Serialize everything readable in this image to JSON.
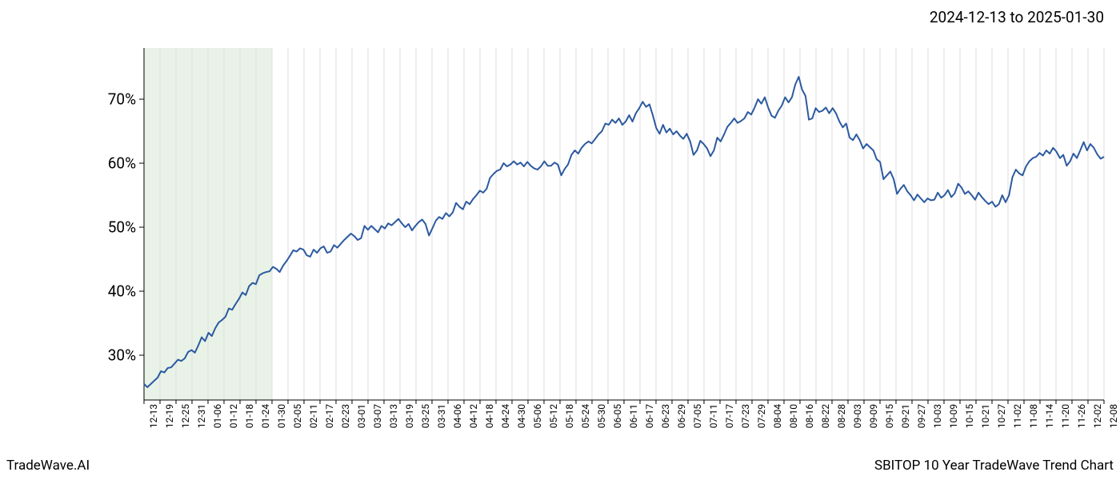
{
  "date_range": "2024-12-13 to 2025-01-30",
  "footer_left": "TradeWave.AI",
  "footer_right": "SBITOP 10 Year TradeWave Trend Chart",
  "chart": {
    "type": "line",
    "line_color": "#2c5aa0",
    "line_width": 2,
    "background_color": "#ffffff",
    "grid_color": "#dcdcdc",
    "highlight_color": "#d5e8d4",
    "highlight_opacity": 0.55,
    "axis_color": "#000000",
    "text_color": "#000000",
    "ylim": [
      23,
      78
    ],
    "y_ticks": [
      30,
      40,
      50,
      60,
      70
    ],
    "y_tick_labels": [
      "30%",
      "40%",
      "50%",
      "60%",
      "70%"
    ],
    "y_label_fontsize": 19,
    "x_label_fontsize": 12,
    "x_labels": [
      "12-13",
      "12-19",
      "12-25",
      "12-31",
      "01-06",
      "01-12",
      "01-18",
      "01-24",
      "01-30",
      "02-05",
      "02-11",
      "02-17",
      "02-23",
      "03-01",
      "03-07",
      "03-13",
      "03-19",
      "03-25",
      "03-31",
      "04-06",
      "04-12",
      "04-18",
      "04-24",
      "04-30",
      "05-06",
      "05-12",
      "05-18",
      "05-24",
      "05-30",
      "06-05",
      "06-11",
      "06-17",
      "06-23",
      "06-29",
      "07-05",
      "07-11",
      "07-17",
      "07-23",
      "07-29",
      "08-04",
      "08-10",
      "08-16",
      "08-22",
      "08-28",
      "09-03",
      "09-09",
      "09-15",
      "09-21",
      "09-27",
      "10-03",
      "10-09",
      "10-15",
      "10-21",
      "10-27",
      "11-02",
      "11-08",
      "11-14",
      "11-20",
      "11-26",
      "12-02",
      "12-08"
    ],
    "highlight_range": {
      "start_idx": 0,
      "end_idx": 8
    },
    "values": [
      25.5,
      25.0,
      25.5,
      26.0,
      26.5,
      27.5,
      27.3,
      28.0,
      28.1,
      28.7,
      29.3,
      29.1,
      29.5,
      30.5,
      30.8,
      30.4,
      31.5,
      32.8,
      32.2,
      33.5,
      33.0,
      34.2,
      35.1,
      35.5,
      36.0,
      37.3,
      37.1,
      38.0,
      38.8,
      39.8,
      39.4,
      40.8,
      41.3,
      41.1,
      42.5,
      42.8,
      43.0,
      43.1,
      43.8,
      43.5,
      43.0,
      44.0,
      44.7,
      45.5,
      46.4,
      46.2,
      46.7,
      46.5,
      45.6,
      45.4,
      46.5,
      46.0,
      46.7,
      47.0,
      46.0,
      46.2,
      47.2,
      46.8,
      47.4,
      48.0,
      48.5,
      49.0,
      48.6,
      48.0,
      48.3,
      50.2,
      49.6,
      50.2,
      49.7,
      49.2,
      50.2,
      49.8,
      50.6,
      50.3,
      50.8,
      51.3,
      50.6,
      50.0,
      50.5,
      49.5,
      50.2,
      50.8,
      51.2,
      50.5,
      48.7,
      49.8,
      51.0,
      51.6,
      51.3,
      52.2,
      51.7,
      52.3,
      53.8,
      53.2,
      52.8,
      54.0,
      53.6,
      54.4,
      55.0,
      55.7,
      55.4,
      56.0,
      57.7,
      58.3,
      58.8,
      59.0,
      60.0,
      59.5,
      59.8,
      60.3,
      59.8,
      60.1,
      59.5,
      60.2,
      59.6,
      59.2,
      59.0,
      59.5,
      60.3,
      59.6,
      59.6,
      60.1,
      59.8,
      58.1,
      59.1,
      59.8,
      61.3,
      62.0,
      61.5,
      62.4,
      63.0,
      63.4,
      63.1,
      63.8,
      64.5,
      65.0,
      66.2,
      66.0,
      66.8,
      66.3,
      67.0,
      66.0,
      66.5,
      67.5,
      66.5,
      67.8,
      68.6,
      69.6,
      68.8,
      69.2,
      67.5,
      65.5,
      64.6,
      66.0,
      64.8,
      65.4,
      64.5,
      65.0,
      64.3,
      63.8,
      64.6,
      63.4,
      61.3,
      62.0,
      63.5,
      63.0,
      62.3,
      61.1,
      62.0,
      64.0,
      63.4,
      64.5,
      65.7,
      66.3,
      67.0,
      66.3,
      66.6,
      67.0,
      68.0,
      67.6,
      68.7,
      70.0,
      69.3,
      70.3,
      68.7,
      67.4,
      67.1,
      68.2,
      69.0,
      70.3,
      69.5,
      70.3,
      72.3,
      73.5,
      71.5,
      70.5,
      66.8,
      67.0,
      68.6,
      68.0,
      68.2,
      68.7,
      67.8,
      68.6,
      67.8,
      66.5,
      65.6,
      66.2,
      64.0,
      63.6,
      64.5,
      63.6,
      62.3,
      63.0,
      62.5,
      62.0,
      60.6,
      60.2,
      57.5,
      58.1,
      58.7,
      57.5,
      55.2,
      56.0,
      56.6,
      55.6,
      55.0,
      54.2,
      55.1,
      54.5,
      53.9,
      54.5,
      54.2,
      54.3,
      55.4,
      54.6,
      55.0,
      55.8,
      54.7,
      55.3,
      56.8,
      56.2,
      55.2,
      55.6,
      55.0,
      54.3,
      55.4,
      54.7,
      54.1,
      53.6,
      54.0,
      53.2,
      53.6,
      55.0,
      53.9,
      55.0,
      57.8,
      59.0,
      58.4,
      58.1,
      59.5,
      60.3,
      60.8,
      61.0,
      61.6,
      61.2,
      62.0,
      61.5,
      62.4,
      61.8,
      60.8,
      61.3,
      59.6,
      60.3,
      61.5,
      60.8,
      62.0,
      63.3,
      62.0,
      63.0,
      62.4,
      61.4,
      60.7,
      61.0
    ],
    "x_count": 284
  }
}
